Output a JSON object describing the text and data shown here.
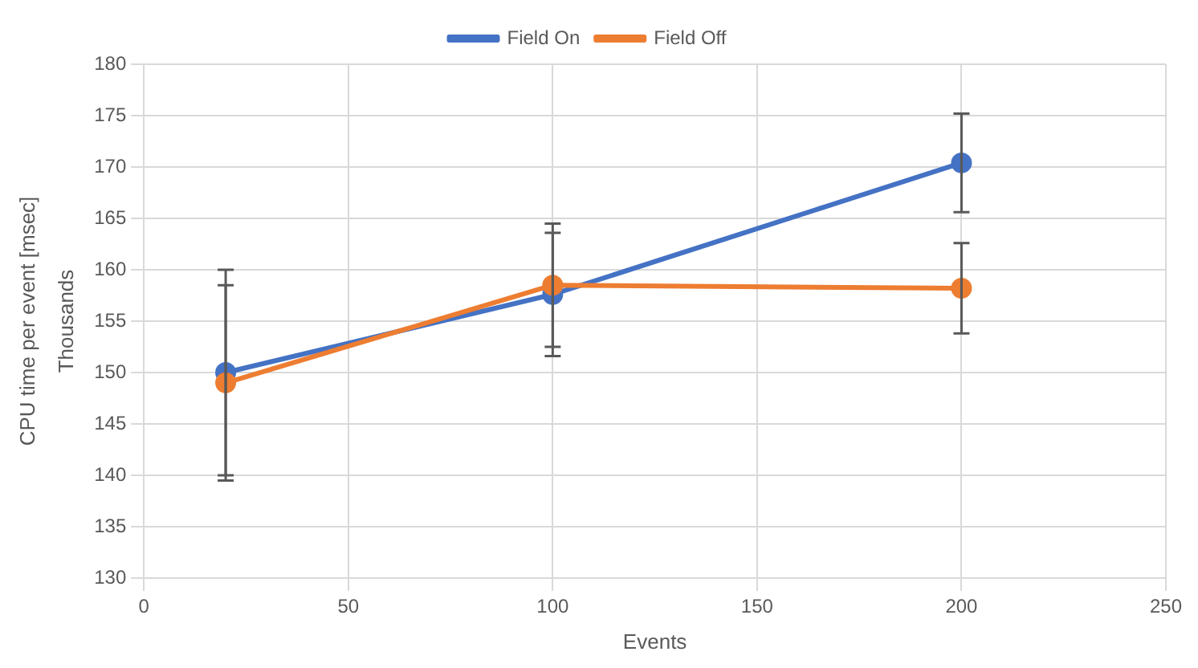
{
  "chart_data": {
    "type": "line",
    "xlabel": "Events",
    "ylabel": "CPU time per event [msec]",
    "annotations": [
      "Thousands"
    ],
    "x": [
      20,
      100,
      200
    ],
    "series": [
      {
        "name": "Field On",
        "color": "#4472c4",
        "values": [
          150,
          157.6,
          170.4
        ],
        "errors": [
          10,
          6,
          4.8
        ]
      },
      {
        "name": "Field Off",
        "color": "#ed7d31",
        "values": [
          149,
          158.5,
          158.2
        ],
        "errors": [
          9.5,
          6,
          4.4
        ]
      }
    ],
    "xlim": [
      0,
      250
    ],
    "xticks": [
      0,
      50,
      100,
      150,
      200,
      250
    ],
    "ylim": [
      130,
      180
    ],
    "yticks": [
      130,
      135,
      140,
      145,
      150,
      155,
      160,
      165,
      170,
      175,
      180
    ],
    "grid": true,
    "legend": "top",
    "marker": "circle",
    "line_style": "solid"
  }
}
